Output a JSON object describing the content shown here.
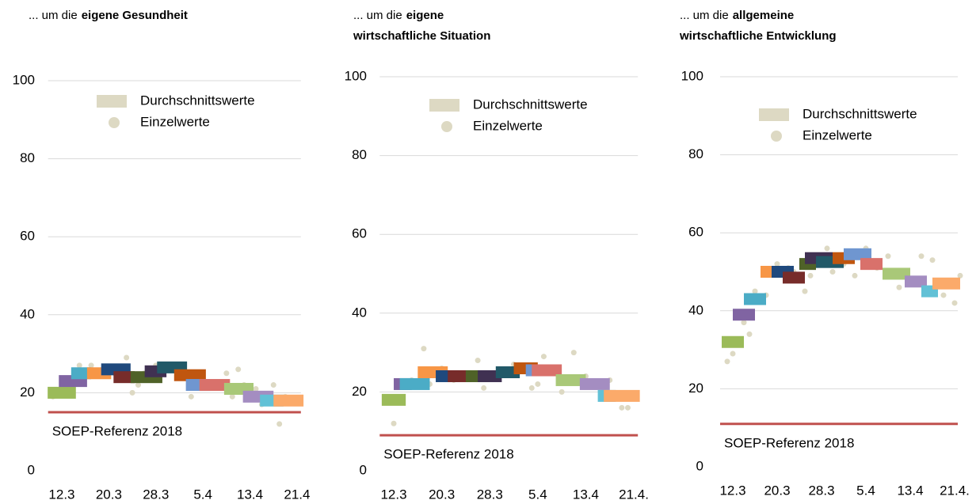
{
  "chart_data": [
    {
      "type": "step",
      "title_lead": "... um die",
      "title_lines": [
        "eigene Gesundheit"
      ],
      "xlim": [
        -3,
        42
      ],
      "xticks": [
        {
          "value": 0,
          "label": "12.3"
        },
        {
          "value": 8,
          "label": "20.3"
        },
        {
          "value": 16,
          "label": "28.3"
        },
        {
          "value": 24,
          "label": "5.4"
        },
        {
          "value": 32,
          "label": "13.4"
        },
        {
          "value": 40,
          "label": "21.4"
        }
      ],
      "ylim": [
        0,
        100
      ],
      "yticks": [
        0,
        20,
        40,
        60,
        80,
        100
      ],
      "grid": true,
      "legend": "upper right",
      "averages": {
        "name": "Durchschnittswerte",
        "color": "#ddd9c3",
        "periods": [
          {
            "x": [
              -2.4,
              2.4
            ],
            "value": 20,
            "color": "#9bbb59"
          },
          {
            "x": [
              -0.5,
              4.3
            ],
            "value": 23,
            "color": "#8064a2"
          },
          {
            "x": [
              1.6,
              5
            ],
            "value": 25,
            "color": "#4bacc6"
          },
          {
            "x": [
              4.3,
              8.4
            ],
            "value": 25,
            "color": "#f79646"
          },
          {
            "x": [
              6.7,
              11.7
            ],
            "value": 26,
            "color": "#1f497d"
          },
          {
            "x": [
              8.8,
              12.4
            ],
            "value": 24,
            "color": "#772c2a"
          },
          {
            "x": [
              11.7,
              17.1
            ],
            "value": 24,
            "color": "#4f6228"
          },
          {
            "x": [
              14.1,
              17.8
            ],
            "value": 25.5,
            "color": "#403152"
          },
          {
            "x": [
              16.2,
              21.3
            ],
            "value": 26.5,
            "color": "#215968"
          },
          {
            "x": [
              19.1,
              24.5
            ],
            "value": 24.5,
            "color": "#c0560f"
          },
          {
            "x": [
              21.1,
              25.2
            ],
            "value": 22,
            "color": "#6f96d0"
          },
          {
            "x": [
              23.4,
              28.6
            ],
            "value": 22,
            "color": "#d9716b"
          },
          {
            "x": [
              27.6,
              32.6
            ],
            "value": 21,
            "color": "#a9c878"
          },
          {
            "x": [
              30.8,
              36
            ],
            "value": 19,
            "color": "#a48dc1"
          },
          {
            "x": [
              33.7,
              37.7
            ],
            "value": 18,
            "color": "#62c1d6"
          },
          {
            "x": [
              36,
              41.1
            ],
            "value": 18,
            "color": "#fbaa6a"
          }
        ]
      },
      "points": {
        "name": "Einzelwerte",
        "color": "#ddd9c3",
        "x": [
          -1.5,
          1,
          3,
          5,
          7,
          9,
          11,
          12,
          13,
          14,
          16,
          18,
          20,
          22,
          24,
          26,
          28,
          29,
          30,
          31,
          33,
          34,
          36,
          37,
          38
        ],
        "values": [
          19,
          22,
          27,
          27,
          26,
          25,
          29,
          20,
          22,
          25,
          27,
          27,
          26,
          19,
          23,
          22,
          25,
          19,
          26,
          22,
          21,
          17,
          22,
          12,
          19
        ]
      },
      "reference": {
        "label": "SOEP-Referenz 2018",
        "value": 15,
        "color": "#c0504d",
        "label_color": "#ed7d31"
      }
    },
    {
      "type": "step",
      "title_lead": "... um die",
      "title_lines": [
        "eigene",
        "wirtschaftliche  Situation"
      ],
      "xlim": [
        -3,
        42
      ],
      "xticks": [
        {
          "value": 0,
          "label": "12.3"
        },
        {
          "value": 8,
          "label": "20.3"
        },
        {
          "value": 16,
          "label": "28.3"
        },
        {
          "value": 24,
          "label": "5.4"
        },
        {
          "value": 32,
          "label": "13.4"
        },
        {
          "value": 40,
          "label": "21.4."
        }
      ],
      "ylim": [
        0,
        100
      ],
      "yticks": [
        0,
        20,
        40,
        60,
        80,
        100
      ],
      "grid": true,
      "legend": "upper right",
      "averages": {
        "name": "Durchschnittswerte",
        "color": "#ddd9c3",
        "periods": [
          {
            "x": [
              -2,
              2
            ],
            "value": 18,
            "color": "#9bbb59"
          },
          {
            "x": [
              0,
              3
            ],
            "value": 22,
            "color": "#8064a2"
          },
          {
            "x": [
              1,
              6
            ],
            "value": 22,
            "color": "#4bacc6"
          },
          {
            "x": [
              4,
              9
            ],
            "value": 25,
            "color": "#f79646"
          },
          {
            "x": [
              7,
              11
            ],
            "value": 24,
            "color": "#1f497d"
          },
          {
            "x": [
              9,
              13
            ],
            "value": 24,
            "color": "#772c2a"
          },
          {
            "x": [
              12,
              16
            ],
            "value": 24,
            "color": "#4f6228"
          },
          {
            "x": [
              14,
              18
            ],
            "value": 24,
            "color": "#403152"
          },
          {
            "x": [
              17,
              21
            ],
            "value": 25,
            "color": "#215968"
          },
          {
            "x": [
              20,
              24
            ],
            "value": 26,
            "color": "#c0560f"
          },
          {
            "x": [
              22,
              25
            ],
            "value": 25.5,
            "color": "#6f96d0"
          },
          {
            "x": [
              23,
              28
            ],
            "value": 25.5,
            "color": "#d9716b"
          },
          {
            "x": [
              27,
              32
            ],
            "value": 23,
            "color": "#a9c878"
          },
          {
            "x": [
              31,
              36
            ],
            "value": 22,
            "color": "#a48dc1"
          },
          {
            "x": [
              34,
              37
            ],
            "value": 19,
            "color": "#62c1d6"
          },
          {
            "x": [
              35,
              41
            ],
            "value": 19,
            "color": "#fbaa6a"
          }
        ]
      },
      "points": {
        "name": "Einzelwerte",
        "color": "#ddd9c3",
        "x": [
          0,
          3,
          5,
          6,
          8,
          10,
          11,
          14,
          15,
          17,
          20,
          21,
          23,
          24,
          25,
          28,
          30,
          32,
          35,
          36,
          38,
          39
        ],
        "values": [
          12,
          23,
          31,
          22,
          26,
          23,
          24,
          28,
          21,
          24,
          27,
          26,
          21,
          22,
          29,
          20,
          30,
          24,
          21,
          23,
          16,
          16
        ]
      },
      "reference": {
        "label": "SOEP-Referenz 2018",
        "value": 9,
        "color": "#c0504d",
        "label_color": "#ed7d31"
      }
    },
    {
      "type": "step",
      "title_lead": "... um die",
      "title_lines": [
        "allgemeine",
        "wirtschaftliche  Entwicklung"
      ],
      "xlim": [
        -3,
        42
      ],
      "xticks": [
        {
          "value": 0,
          "label": "12.3"
        },
        {
          "value": 8,
          "label": "20.3"
        },
        {
          "value": 16,
          "label": "28.3"
        },
        {
          "value": 24,
          "label": "5.4"
        },
        {
          "value": 32,
          "label": "13.4"
        },
        {
          "value": 40,
          "label": "21.4."
        }
      ],
      "ylim": [
        0,
        100
      ],
      "yticks": [
        0,
        20,
        40,
        60,
        80,
        100
      ],
      "grid": true,
      "legend": "upper right",
      "averages": {
        "name": "Durchschnittswerte",
        "color": "#ddd9c3",
        "periods": [
          {
            "x": [
              -2,
              2
            ],
            "value": 32,
            "color": "#9bbb59"
          },
          {
            "x": [
              0,
              4
            ],
            "value": 39,
            "color": "#8064a2"
          },
          {
            "x": [
              2,
              6
            ],
            "value": 43,
            "color": "#4bacc6"
          },
          {
            "x": [
              5,
              9
            ],
            "value": 50,
            "color": "#f79646"
          },
          {
            "x": [
              7,
              11
            ],
            "value": 50,
            "color": "#1f497d"
          },
          {
            "x": [
              9,
              13
            ],
            "value": 48.5,
            "color": "#772c2a"
          },
          {
            "x": [
              12,
              15
            ],
            "value": 52,
            "color": "#4f6228"
          },
          {
            "x": [
              13,
              18
            ],
            "value": 53.5,
            "color": "#403152"
          },
          {
            "x": [
              15,
              20
            ],
            "value": 52.5,
            "color": "#215968"
          },
          {
            "x": [
              18,
              22
            ],
            "value": 53.5,
            "color": "#c0560f"
          },
          {
            "x": [
              20,
              25
            ],
            "value": 54.5,
            "color": "#6f96d0"
          },
          {
            "x": [
              23,
              27
            ],
            "value": 52,
            "color": "#d9716b"
          },
          {
            "x": [
              27,
              32
            ],
            "value": 49.5,
            "color": "#a9c878"
          },
          {
            "x": [
              31,
              35
            ],
            "value": 47.5,
            "color": "#a48dc1"
          },
          {
            "x": [
              34,
              37
            ],
            "value": 45,
            "color": "#62c1d6"
          },
          {
            "x": [
              36,
              41
            ],
            "value": 47,
            "color": "#fbaa6a"
          }
        ]
      },
      "points": {
        "name": "Einzelwerte",
        "color": "#ddd9c3",
        "x": [
          -1,
          0,
          2,
          3,
          4,
          6,
          8,
          10,
          11,
          13,
          14,
          17,
          18,
          20,
          22,
          24,
          26,
          28,
          30,
          32,
          34,
          36,
          38,
          40,
          41
        ],
        "values": [
          27,
          29,
          37,
          34,
          45,
          44,
          52,
          51,
          50,
          45,
          49,
          56,
          50,
          52,
          49,
          56,
          51,
          54,
          46,
          47,
          54,
          53,
          44,
          42,
          49
        ]
      },
      "reference": {
        "label": "SOEP-Referenz 2018",
        "value": 11,
        "color": "#c0504d",
        "label_color": "#ed7d31"
      }
    }
  ]
}
